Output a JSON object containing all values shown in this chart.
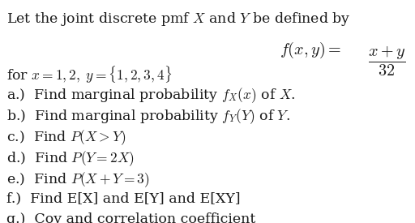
{
  "title_line": "Let the joint discrete pmf $X$ and $Y$ be defined by",
  "formula_left": "$f(x, y) = $",
  "formula_frac": "$\\dfrac{x + y}{32}$",
  "lines": [
    "for $x = 1, 2,\\; y = \\{1, 2, 3, 4\\}$",
    "a.)  Find marginal probability $f_X(x)$ of $X$.",
    "b.)  Find marginal probability $f_Y(Y)$ of $Y$.",
    "c.)  Find $P(X > Y)$",
    "d.)  Find $P(Y = 2X)$",
    "e.)  Find $P(X + Y = 3)$",
    "f.)  Find E[X] and E[Y] and E[XY]",
    "g.)  Cov and correlation coefficient"
  ],
  "bg_color": "#ffffff",
  "text_color": "#1a1a1a",
  "fontsize_title": 12.5,
  "fontsize_formula": 14.5,
  "fontsize_lines": 12.5
}
